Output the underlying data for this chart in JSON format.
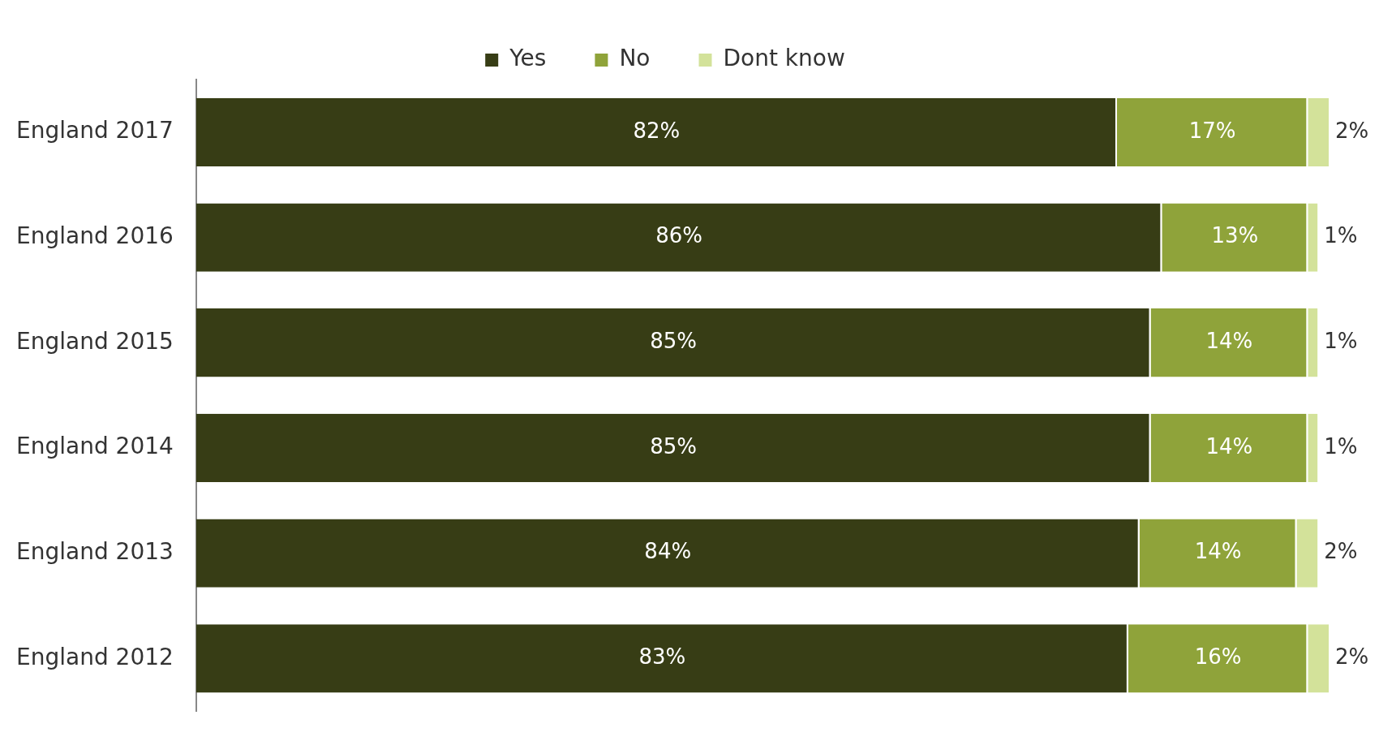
{
  "chart_data": {
    "type": "bar",
    "orientation": "horizontal",
    "stacked": true,
    "categories": [
      "England 2017",
      "England 2016",
      "England 2015",
      "England 2014",
      "England 2013",
      "England 2012"
    ],
    "series": [
      {
        "name": "Yes",
        "color": "#373d15",
        "values": [
          82,
          86,
          85,
          85,
          84,
          83
        ],
        "value_labels": [
          "82%",
          "86%",
          "85%",
          "85%",
          "84%",
          "83%"
        ]
      },
      {
        "name": "No",
        "color": "#8fa33a",
        "values": [
          17,
          13,
          14,
          14,
          14,
          16
        ],
        "value_labels": [
          "17%",
          "13%",
          "14%",
          "14%",
          "14%",
          "16%"
        ]
      },
      {
        "name": "Dont know",
        "color": "#d3e29a",
        "values": [
          2,
          1,
          1,
          1,
          2,
          2
        ],
        "value_labels": [
          "2%",
          "1%",
          "1%",
          "1%",
          "2%",
          "2%"
        ]
      }
    ],
    "legend": "top",
    "grid": false,
    "tick_labels": "y"
  }
}
